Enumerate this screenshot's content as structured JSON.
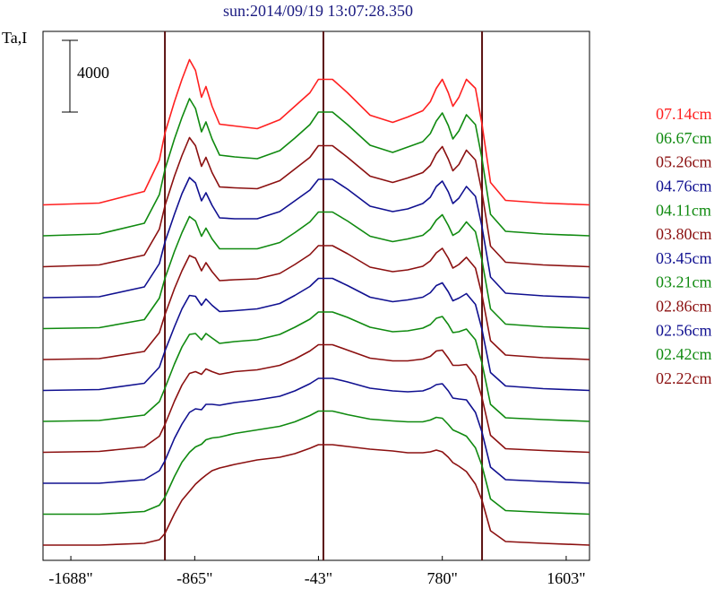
{
  "chart_data": {
    "type": "line",
    "title": "sun:2014/09/19 13:07:28.350",
    "ylabel": "Ta,I",
    "scale_bar": {
      "value": 4000,
      "label": "4000"
    },
    "xlim": [
      -1873,
      1758
    ],
    "ylim": [
      0,
      29500
    ],
    "xticks": [
      {
        "value": -1688,
        "label": "-1688\""
      },
      {
        "value": -865,
        "label": "-865\""
      },
      {
        "value": -43,
        "label": "-43\""
      },
      {
        "value": 780,
        "label": "780\""
      },
      {
        "value": 1603,
        "label": "1603\""
      }
    ],
    "vlines": [
      -1063,
      -10,
      1044
    ],
    "vline_color": "#5a1010",
    "x": [
      -1873,
      -1500,
      -1200,
      -1100,
      -1063,
      -1000,
      -950,
      -900,
      -860,
      -820,
      -790,
      -750,
      -700,
      -600,
      -450,
      -300,
      -200,
      -100,
      -43,
      50,
      150,
      300,
      450,
      550,
      650,
      700,
      740,
      780,
      820,
      850,
      890,
      940,
      1000,
      1044,
      1100,
      1200,
      1450,
      1758
    ],
    "series": [
      {
        "name": "07.14cm",
        "color": "#ff2020",
        "values": [
          19825,
          19925,
          20575,
          22325,
          23825,
          25575,
          26825,
          27925,
          27325,
          25825,
          26425,
          25325,
          24325,
          24225,
          24075,
          24575,
          25325,
          26075,
          26825,
          26825,
          26075,
          24825,
          24425,
          24725,
          25075,
          25575,
          26325,
          26825,
          26075,
          25325,
          25825,
          26825,
          26325,
          24325,
          21075,
          20075,
          19925,
          19825
        ]
      },
      {
        "name": "06.67cm",
        "color": "#108a10",
        "values": [
          18100,
          18200,
          18800,
          20400,
          21800,
          23500,
          24700,
          25750,
          25200,
          23900,
          24450,
          23500,
          22600,
          22500,
          22400,
          22850,
          23550,
          24300,
          25000,
          25000,
          24300,
          23150,
          22750,
          23050,
          23350,
          23800,
          24500,
          24950,
          24250,
          23500,
          23950,
          24850,
          24300,
          22400,
          19300,
          18350,
          18200,
          18100
        ]
      },
      {
        "name": "05.26cm",
        "color": "#8b1010",
        "values": [
          16375,
          16475,
          17025,
          18475,
          19775,
          21425,
          22575,
          23575,
          23125,
          21975,
          22475,
          21625,
          20825,
          20775,
          20725,
          21175,
          21825,
          22475,
          23125,
          23125,
          22475,
          21425,
          21075,
          21325,
          21625,
          22025,
          22675,
          23075,
          22375,
          21725,
          22075,
          22875,
          22325,
          20525,
          17525,
          16625,
          16475,
          16375
        ]
      },
      {
        "name": "04.76cm",
        "color": "#101090",
        "values": [
          14650,
          14700,
          15250,
          16550,
          17750,
          19300,
          20450,
          21350,
          21050,
          20050,
          20500,
          19800,
          19100,
          19050,
          19050,
          19450,
          20050,
          20650,
          21250,
          21250,
          20700,
          19750,
          19450,
          19600,
          19900,
          20250,
          20850,
          21150,
          20550,
          19900,
          20200,
          20850,
          20300,
          18600,
          15800,
          14900,
          14750,
          14650
        ]
      },
      {
        "name": "04.11cm",
        "color": "#108a10",
        "values": [
          12925,
          12975,
          13425,
          14625,
          15725,
          17225,
          18275,
          19175,
          18925,
          18075,
          18525,
          17925,
          17375,
          17375,
          17375,
          17725,
          18275,
          18875,
          19425,
          19425,
          18925,
          18075,
          17775,
          17925,
          18125,
          18475,
          18975,
          19275,
          18675,
          18125,
          18325,
          18875,
          18325,
          16725,
          14025,
          13175,
          13025,
          12925
        ]
      },
      {
        "name": "03.80cm",
        "color": "#8b1010",
        "values": [
          11200,
          11250,
          11650,
          12700,
          13700,
          15150,
          16150,
          17000,
          16850,
          16150,
          16600,
          16100,
          15600,
          15650,
          15700,
          16000,
          16500,
          17050,
          17550,
          17550,
          17100,
          16350,
          16100,
          16200,
          16400,
          16700,
          17150,
          17400,
          16850,
          16300,
          16500,
          16900,
          16300,
          14800,
          12250,
          11450,
          11300,
          11200
        ]
      },
      {
        "name": "03.45cm",
        "color": "#101090",
        "values": [
          9475,
          9525,
          9875,
          10775,
          11675,
          13025,
          14025,
          14775,
          14725,
          14225,
          14575,
          14225,
          13875,
          13925,
          14025,
          14325,
          14775,
          15275,
          15725,
          15725,
          15325,
          14675,
          14425,
          14525,
          14675,
          14925,
          15325,
          15475,
          14975,
          14475,
          14625,
          14875,
          14275,
          12875,
          10475,
          9725,
          9575,
          9475
        ]
      },
      {
        "name": "03.21cm",
        "color": "#108a10",
        "values": [
          7750,
          7800,
          8100,
          8850,
          9600,
          10950,
          11900,
          12600,
          12650,
          12300,
          12650,
          12400,
          12100,
          12200,
          12300,
          12600,
          13000,
          13450,
          13850,
          13850,
          13550,
          13000,
          12750,
          12800,
          12950,
          13150,
          13500,
          13600,
          13150,
          12700,
          12750,
          12900,
          12300,
          11000,
          8700,
          7950,
          7850,
          7750
        ]
      },
      {
        "name": "02.86cm",
        "color": "#8b1010",
        "values": [
          6025,
          6075,
          6325,
          6925,
          7575,
          8875,
          9775,
          10425,
          10525,
          10375,
          10675,
          10525,
          10375,
          10525,
          10625,
          10875,
          11225,
          11675,
          12025,
          12025,
          11725,
          11275,
          11125,
          11125,
          11225,
          11375,
          11675,
          11725,
          11275,
          10875,
          10875,
          10925,
          10275,
          9075,
          6975,
          6225,
          6125,
          6025
        ]
      },
      {
        "name": "02.56cm",
        "color": "#101090",
        "values": [
          4300,
          4300,
          4500,
          5000,
          5550,
          6800,
          7600,
          8250,
          8450,
          8400,
          8700,
          8700,
          8650,
          8800,
          8950,
          9150,
          9450,
          9850,
          10150,
          10150,
          9950,
          9600,
          9450,
          9400,
          9450,
          9600,
          9800,
          9850,
          9450,
          9050,
          9000,
          8950,
          8250,
          7150,
          5200,
          4500,
          4400,
          4300
        ]
      },
      {
        "name": "02.42cm",
        "color": "#108a10",
        "values": [
          2575,
          2575,
          2725,
          3075,
          3525,
          4675,
          5475,
          6025,
          6325,
          6475,
          6725,
          6825,
          6875,
          7075,
          7275,
          7475,
          7725,
          8075,
          8325,
          8325,
          8125,
          7875,
          7775,
          7725,
          7725,
          7825,
          7975,
          7925,
          7575,
          7275,
          7125,
          6925,
          6275,
          5275,
          3425,
          2775,
          2675,
          2575
        ]
      },
      {
        "name": "02.22cm",
        "color": "#8b1010",
        "values": [
          850,
          850,
          950,
          1150,
          1500,
          2600,
          3350,
          3850,
          4250,
          4550,
          4750,
          5000,
          5150,
          5350,
          5600,
          5750,
          5950,
          6250,
          6450,
          6450,
          6350,
          6200,
          6100,
          6000,
          6000,
          6050,
          6150,
          6050,
          5750,
          5450,
          5250,
          4950,
          4250,
          3350,
          1650,
          1050,
          950,
          850
        ]
      }
    ]
  }
}
